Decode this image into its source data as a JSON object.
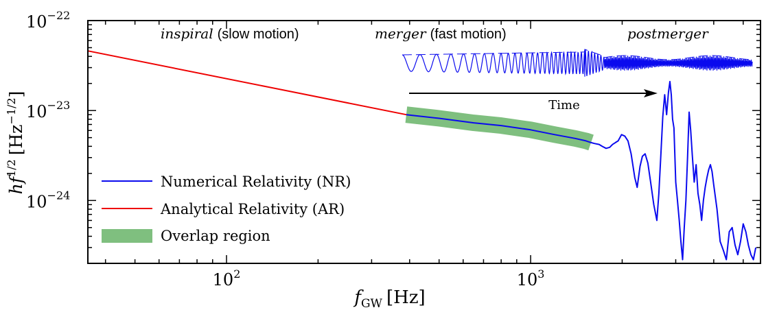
{
  "chart_data": {
    "type": "line",
    "x_scale": "log",
    "y_scale": "log",
    "xlabel_base": "f",
    "xlabel_sub": "GW",
    "xlabel_unit": "[Hz]",
    "ylabel_base": "hf",
    "ylabel_exp": "1/2",
    "ylabel_unit_open": "[Hz",
    "ylabel_unit_exp": "−1/2",
    "ylabel_unit_close": "]",
    "xlim": [
      35,
      5700
    ],
    "ylim": [
      2e-25,
      1e-22
    ],
    "x_ticks": [
      {
        "value": 100,
        "base": "10",
        "exp": "2"
      },
      {
        "value": 1000,
        "base": "10",
        "exp": "3"
      }
    ],
    "y_ticks": [
      {
        "value": 1e-22,
        "base": "10",
        "exp": "−22"
      },
      {
        "value": 1e-23,
        "base": "10",
        "exp": "−23"
      },
      {
        "value": 1e-24,
        "base": "10",
        "exp": "−24"
      }
    ],
    "grid": false,
    "legend_position": "lower-left",
    "series": [
      {
        "name": "Numerical Relativity (NR)",
        "color": "#0a0aee",
        "x": [
          390,
          500,
          650,
          800,
          1000,
          1200,
          1400,
          1520,
          1580,
          1620,
          1680,
          1720,
          1770,
          1820,
          1860,
          1900,
          1940,
          1990,
          2040,
          2090,
          2140,
          2200,
          2240,
          2290,
          2330,
          2380,
          2430,
          2480,
          2540,
          2600,
          2640,
          2680,
          2720,
          2760,
          2800,
          2840,
          2870,
          2900,
          2930,
          2960,
          3000,
          3040,
          3080,
          3120,
          3160,
          3200,
          3240,
          3280,
          3320,
          3360,
          3400,
          3450,
          3500,
          3550,
          3600,
          3650,
          3700,
          3750,
          3800,
          3850,
          3900,
          3950,
          4000,
          4100,
          4200,
          4300,
          4400,
          4500,
          4600,
          4700,
          4800,
          4900,
          5000,
          5100,
          5200,
          5300,
          5400,
          5500
        ],
        "y": [
          9e-24,
          8.2e-24,
          7.3e-24,
          6.8e-24,
          6.1e-24,
          5.4e-24,
          4.9e-24,
          4.6e-24,
          4.4e-24,
          4.3e-24,
          4.2e-24,
          4e-24,
          3.8e-24,
          3.9e-24,
          4.2e-24,
          4.4e-24,
          4.6e-24,
          5.4e-24,
          5.2e-24,
          4.6e-24,
          3.3e-24,
          1.8e-24,
          1.4e-24,
          2.4e-24,
          3.1e-24,
          3.3e-24,
          2.6e-24,
          1.6e-24,
          9e-25,
          6e-25,
          1.2e-24,
          3.2e-24,
          8.5e-24,
          1.5e-23,
          9e-24,
          1.6e-23,
          2.1e-23,
          1.5e-23,
          8e-24,
          6.4e-24,
          1.6e-24,
          1e-24,
          6e-25,
          3.5e-25,
          2.2e-25,
          5e-25,
          1e-24,
          3e-24,
          9.6e-24,
          6e-24,
          3.2e-24,
          1.6e-24,
          2.5e-24,
          1.2e-24,
          9e-25,
          6e-25,
          1e-24,
          1.4e-24,
          1.8e-24,
          2.2e-24,
          2.5e-24,
          2.1e-24,
          1.5e-24,
          8e-25,
          3.5e-25,
          2.8e-25,
          2.2e-25,
          4.5e-25,
          5e-25,
          3.2e-25,
          2.5e-25,
          3.5e-25,
          5.5e-25,
          4.5e-25,
          3.2e-25,
          2.5e-25,
          2.2e-25,
          3e-25
        ]
      },
      {
        "name": "Analytical Relativity (AR)",
        "color": "#ee0000",
        "x": [
          35,
          390
        ],
        "y": [
          4.6e-23,
          9e-24
        ]
      }
    ],
    "overlap_region": {
      "name": "Overlap region",
      "color": "#7fbf7f",
      "x": [
        390,
        1600
      ]
    },
    "annotations": {
      "inspiral_italic": "inspiral",
      "inspiral_rest": "(slow motion)",
      "merger_italic": "merger",
      "merger_rest": "(fast motion)",
      "postmerger_italic": "postmerger",
      "time_label": "Time"
    }
  }
}
